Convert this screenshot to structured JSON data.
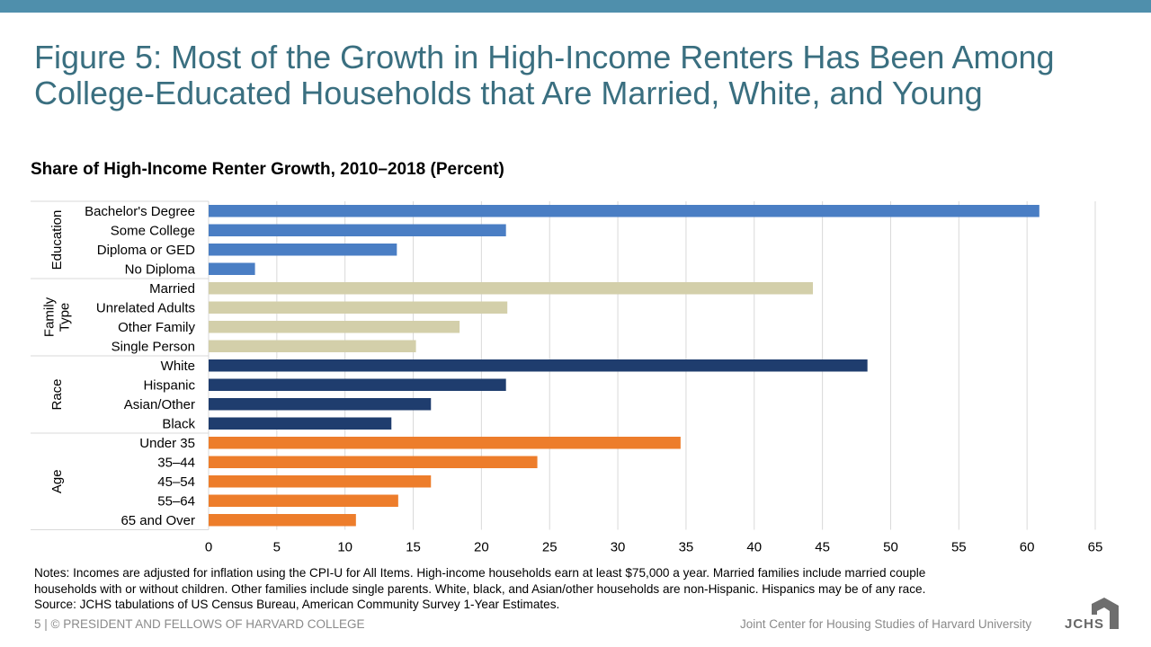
{
  "slide": {
    "title_line1": "Figure 5: Most of the Growth in High-Income Renters Has Been Among",
    "title_line2": "College-Educated Households that Are Married, White, and Young",
    "notes_line1": "Notes: Incomes are adjusted for inflation using the CPI-U for All Items. High-income households earn at least $75,000 a year. Married families include married couple",
    "notes_line2": "households with or without children. Other families include single parents. White, black, and Asian/other households are non-Hispanic. Hispanics may be of any race.",
    "notes_line3": "Source: JCHS tabulations of US Census Bureau, American Community Survey 1-Year Estimates.",
    "footer_left": "5 | © PRESIDENT AND FELLOWS OF HARVARD COLLEGE",
    "footer_right": "Joint Center for Housing Studies of Harvard University",
    "logo_text": "JCHS",
    "colors": {
      "top_bar": "#4f8fac",
      "title": "#3a6f80"
    }
  },
  "chart_data": {
    "type": "bar",
    "orientation": "horizontal",
    "title": "Share of High-Income Renter Growth, 2010–2018 (Percent)",
    "xlim": [
      0,
      65
    ],
    "x_ticks": [
      0,
      5,
      10,
      15,
      20,
      25,
      30,
      35,
      40,
      45,
      50,
      55,
      60,
      65
    ],
    "grid": "vertical",
    "groups": [
      {
        "label": "Education",
        "color": "#4a7ec4",
        "categories": [
          "Bachelor's Degree",
          "Some College",
          "Diploma or GED",
          "No Diploma"
        ],
        "values": [
          60.9,
          21.8,
          13.8,
          3.4
        ]
      },
      {
        "label": "Family Type",
        "color": "#d3cfaa",
        "categories": [
          "Married",
          "Unrelated Adults",
          "Other Family",
          "Single Person"
        ],
        "values": [
          44.3,
          21.9,
          18.4,
          15.2
        ]
      },
      {
        "label": "Race",
        "color": "#1f3d6e",
        "categories": [
          "White",
          "Hispanic",
          "Asian/Other",
          "Black"
        ],
        "values": [
          48.3,
          21.8,
          16.3,
          13.4
        ]
      },
      {
        "label": "Age",
        "color": "#ed7d2b",
        "categories": [
          "Under 35",
          "35–44",
          "45–54",
          "55–64",
          "65 and Over"
        ],
        "values": [
          34.6,
          24.1,
          16.3,
          13.9,
          10.8
        ]
      }
    ]
  }
}
